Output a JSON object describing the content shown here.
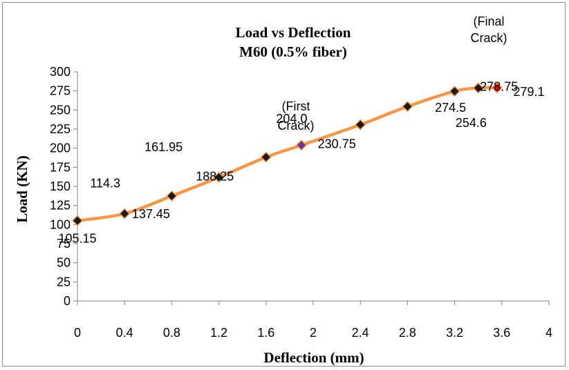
{
  "chart_data": {
    "type": "line",
    "title": "Load vs Deflection",
    "subtitle": "M60 (0.5% fiber)",
    "xlabel": "Deflection (mm)",
    "ylabel": "Load (KN)",
    "xlim": [
      0,
      4
    ],
    "ylim": [
      0,
      300
    ],
    "x_ticks": [
      "0",
      "0.4",
      "0.8",
      "1.2",
      "1.6",
      "2",
      "2.4",
      "2.8",
      "3.2",
      "3.6",
      "4"
    ],
    "y_ticks": [
      "0",
      "25",
      "50",
      "75",
      "100",
      "125",
      "150",
      "175",
      "200",
      "225",
      "250",
      "275",
      "300"
    ],
    "grid": false,
    "legend": "none",
    "line_color": "#f79646",
    "marker_color": "#1a1a1a",
    "series": [
      {
        "x": [
          0,
          0.4,
          0.8,
          1.2,
          1.6,
          1.9,
          2.4,
          2.8,
          3.2,
          3.4,
          3.56
        ],
        "y": [
          105.15,
          114.3,
          137.45,
          161.95,
          188.25,
          204.0,
          230.75,
          254.6,
          274.5,
          278.75,
          279.1
        ],
        "labels": [
          "105.15",
          "114.3",
          "137.45",
          "161.95",
          "188.25",
          "204.0",
          "230.75",
          "254.6",
          "274.5",
          "278.75",
          "279.1"
        ]
      }
    ],
    "annotations": [
      {
        "text_lines": [
          "(First",
          "Crack)"
        ],
        "color": "#7030a0",
        "point_index": 5
      },
      {
        "text_lines": [
          "(Final",
          "Crack)"
        ],
        "color": "#ff0000",
        "point_index": 10
      }
    ]
  }
}
